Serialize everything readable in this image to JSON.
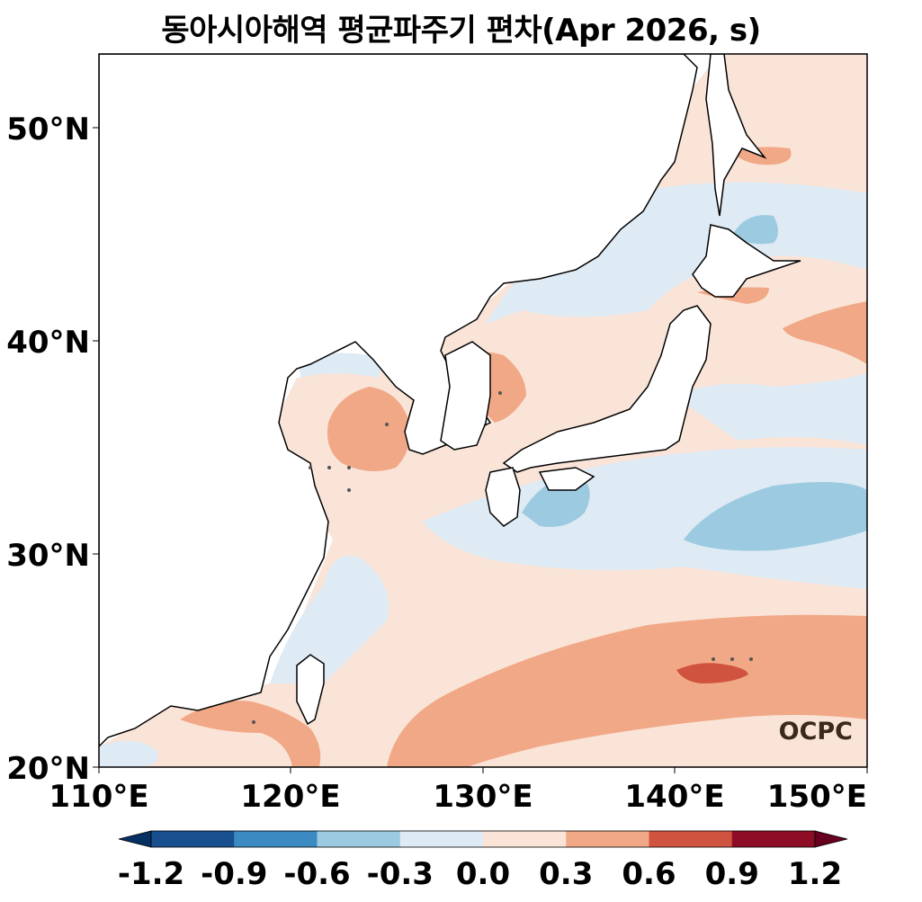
{
  "title": "동아시아해역 평균파주기 편차(Apr 2026, s)",
  "logo_text": "OCPC",
  "map": {
    "lon_range": [
      110,
      150
    ],
    "lat_range": [
      20,
      53.5
    ],
    "x_ticks": [
      "110°E",
      "120°E",
      "130°E",
      "140°E",
      "150°E"
    ],
    "y_ticks": [
      "20°N",
      "30°N",
      "40°N",
      "50°N"
    ]
  },
  "colorbar": {
    "ticks": [
      "-1.2",
      "-0.9",
      "-0.6",
      "-0.3",
      "0.0",
      "0.3",
      "0.6",
      "0.9",
      "1.2"
    ],
    "colors": [
      "#053061",
      "#18508f",
      "#3b8bc2",
      "#9ccae0",
      "#deeaf4",
      "#fae4d8",
      "#f1a886",
      "#d0533f",
      "#8e0d26",
      "#67001f"
    ],
    "extend": "both"
  },
  "chart_data": {
    "type": "contour-map",
    "variable": "mean wave period anomaly",
    "units": "s",
    "period": "Apr 2026",
    "levels": [
      -1.2,
      -0.9,
      -0.6,
      -0.3,
      0.0,
      0.3,
      0.6,
      0.9,
      1.2
    ],
    "regions": [
      {
        "area": "southern East China Sea / Philippine Sea band (~21-27°N)",
        "range": [
          0.3,
          0.6
        ]
      },
      {
        "area": "east of Okinawa near 24.5°N 141-143°E",
        "range": [
          0.6,
          0.9
        ]
      },
      {
        "area": "central Yellow Sea",
        "range": [
          0.3,
          0.6
        ]
      },
      {
        "area": "East Sea / Sea of Japan near 38°N 131°E",
        "range": [
          0.3,
          0.6
        ]
      },
      {
        "area": "south of Japan (~30-32°N)",
        "range": [
          -0.6,
          -0.3
        ]
      },
      {
        "area": "near 45°N 142°E",
        "range": [
          -0.6,
          -0.3
        ]
      },
      {
        "area": "western North Pacific ~40-41°N 148-150°E",
        "range": [
          0.3,
          0.6
        ]
      },
      {
        "area": "Sea of Okhotsk south ~48°N 144°E",
        "range": [
          0.3,
          0.6
        ]
      }
    ]
  }
}
